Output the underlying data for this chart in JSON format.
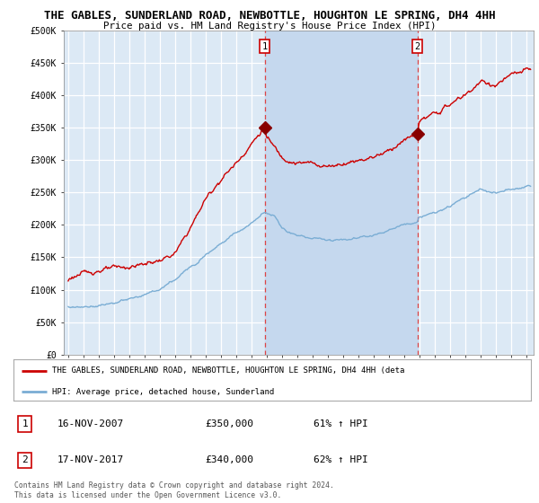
{
  "title": "THE GABLES, SUNDERLAND ROAD, NEWBOTTLE, HOUGHTON LE SPRING, DH4 4HH",
  "subtitle": "Price paid vs. HM Land Registry's House Price Index (HPI)",
  "ylim": [
    0,
    500000
  ],
  "yticks": [
    0,
    50000,
    100000,
    150000,
    200000,
    250000,
    300000,
    350000,
    400000,
    450000,
    500000
  ],
  "background_color": "#dce9f5",
  "shade_color": "#c5d8ee",
  "grid_color": "#ffffff",
  "red_line_color": "#cc0000",
  "blue_line_color": "#7aadd4",
  "marker1_x": 2007.88,
  "marker1_y": 350000,
  "marker2_x": 2017.88,
  "marker2_y": 340000,
  "vline_color": "#dd4444",
  "legend_red_label": "THE GABLES, SUNDERLAND ROAD, NEWBOTTLE, HOUGHTON LE SPRING, DH4 4HH (deta",
  "legend_blue_label": "HPI: Average price, detached house, Sunderland",
  "table_rows": [
    {
      "num": "1",
      "date": "16-NOV-2007",
      "price": "£350,000",
      "pct": "61% ↑ HPI"
    },
    {
      "num": "2",
      "date": "17-NOV-2017",
      "price": "£340,000",
      "pct": "62% ↑ HPI"
    }
  ],
  "footer": "Contains HM Land Registry data © Crown copyright and database right 2024.\nThis data is licensed under the Open Government Licence v3.0.",
  "xmin": 1994.7,
  "xmax": 2025.5,
  "xticks": [
    1995,
    1996,
    1997,
    1998,
    1999,
    2000,
    2001,
    2002,
    2003,
    2004,
    2005,
    2006,
    2007,
    2008,
    2009,
    2010,
    2011,
    2012,
    2013,
    2014,
    2015,
    2016,
    2017,
    2018,
    2019,
    2020,
    2021,
    2022,
    2023,
    2024,
    2025
  ],
  "red_keypoints_x": [
    1995,
    1996,
    1997,
    1998,
    1999,
    2000,
    2001,
    2002,
    2003,
    2004,
    2005,
    2006,
    2007,
    2007.88,
    2008,
    2009,
    2010,
    2011,
    2012,
    2013,
    2014,
    2015,
    2016,
    2017,
    2017.88,
    2018,
    2019,
    2020,
    2021,
    2022,
    2023,
    2024,
    2025.3
  ],
  "red_keypoints_y": [
    120000,
    125000,
    130000,
    133000,
    135000,
    140000,
    145000,
    155000,
    195000,
    240000,
    270000,
    295000,
    325000,
    350000,
    335000,
    305000,
    295000,
    295000,
    290000,
    295000,
    300000,
    305000,
    315000,
    330000,
    340000,
    360000,
    370000,
    385000,
    400000,
    420000,
    415000,
    430000,
    440000
  ],
  "blue_keypoints_x": [
    1995,
    1996,
    1997,
    1998,
    1999,
    2000,
    2001,
    2002,
    2003,
    2004,
    2005,
    2006,
    2007,
    2007.88,
    2008.5,
    2009,
    2010,
    2011,
    2012,
    2013,
    2014,
    2015,
    2016,
    2017,
    2017.88,
    2018,
    2019,
    2020,
    2021,
    2022,
    2023,
    2024,
    2025.3
  ],
  "blue_keypoints_y": [
    70000,
    73000,
    76000,
    80000,
    85000,
    92000,
    100000,
    115000,
    135000,
    155000,
    172000,
    188000,
    202000,
    220000,
    215000,
    195000,
    183000,
    180000,
    177000,
    178000,
    180000,
    185000,
    192000,
    200000,
    205000,
    212000,
    218000,
    228000,
    242000,
    255000,
    248000,
    255000,
    260000
  ]
}
